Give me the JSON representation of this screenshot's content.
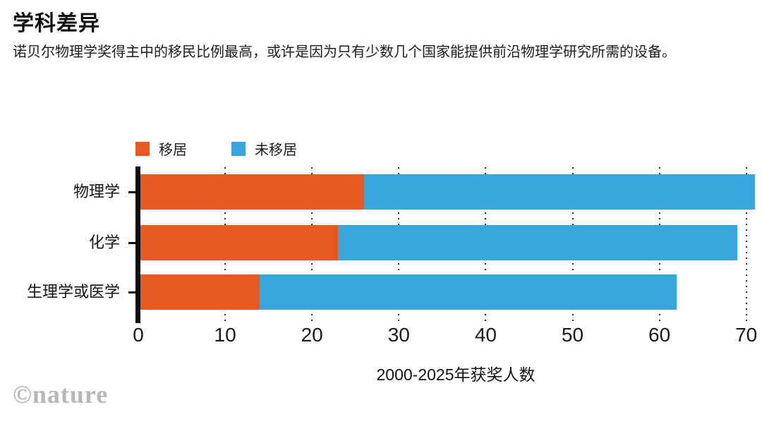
{
  "header": {
    "title": "学科差异",
    "subtitle": "诺贝尔物理学奖得主中的移民比例最高，或许是因为只有少数几个国家能提供前沿物理学研究所需的设备。"
  },
  "chart_data": {
    "type": "bar",
    "orientation": "horizontal",
    "stacked": true,
    "title": "学科差异",
    "categories": [
      "物理学",
      "化学",
      "生理学或医学"
    ],
    "series": [
      {
        "key": "migrated",
        "name": "移居",
        "color": "#E7591F",
        "values": [
          26,
          23,
          14
        ]
      },
      {
        "key": "not-migrated",
        "name": "未移居",
        "color": "#38A5DC",
        "values": [
          45,
          46,
          48
        ]
      }
    ],
    "totals": [
      71,
      69,
      62
    ],
    "xlabel": "2000-2025年获奖人数",
    "ylabel": "",
    "xticks": [
      0,
      10,
      20,
      30,
      40,
      50,
      60,
      70
    ],
    "xlim": [
      0,
      70
    ],
    "grid": "dotted-vertical",
    "legend_position": "top-left"
  },
  "footer": {
    "watermark": "©nature"
  }
}
